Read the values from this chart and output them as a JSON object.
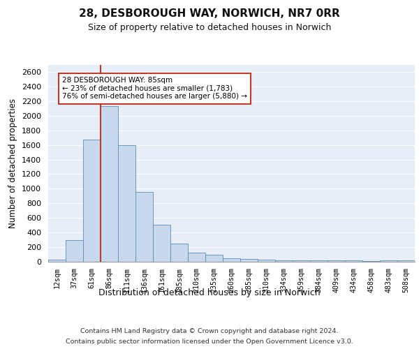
{
  "title": "28, DESBOROUGH WAY, NORWICH, NR7 0RR",
  "subtitle": "Size of property relative to detached houses in Norwich",
  "xlabel": "Distribution of detached houses by size in Norwich",
  "ylabel": "Number of detached properties",
  "bar_color": "#c8d9ed",
  "bar_edgecolor": "#5b8db8",
  "background_color": "#e8eef8",
  "grid_color": "#ffffff",
  "categories": [
    "12sqm",
    "37sqm",
    "61sqm",
    "86sqm",
    "111sqm",
    "136sqm",
    "161sqm",
    "185sqm",
    "210sqm",
    "235sqm",
    "260sqm",
    "285sqm",
    "310sqm",
    "334sqm",
    "359sqm",
    "384sqm",
    "409sqm",
    "434sqm",
    "458sqm",
    "483sqm",
    "508sqm"
  ],
  "values": [
    25,
    300,
    1670,
    2130,
    1600,
    960,
    505,
    250,
    120,
    100,
    50,
    40,
    30,
    20,
    20,
    18,
    18,
    18,
    5,
    20,
    22
  ],
  "vline_color": "#c0392b",
  "annotation_text": "28 DESBOROUGH WAY: 85sqm\n← 23% of detached houses are smaller (1,783)\n76% of semi-detached houses are larger (5,880) →",
  "annotation_box_color": "#ffffff",
  "annotation_box_edgecolor": "#c0392b",
  "ylim": [
    0,
    2700
  ],
  "yticks": [
    0,
    200,
    400,
    600,
    800,
    1000,
    1200,
    1400,
    1600,
    1800,
    2000,
    2200,
    2400,
    2600
  ],
  "footer_line1": "Contains HM Land Registry data © Crown copyright and database right 2024.",
  "footer_line2": "Contains public sector information licensed under the Open Government Licence v3.0."
}
